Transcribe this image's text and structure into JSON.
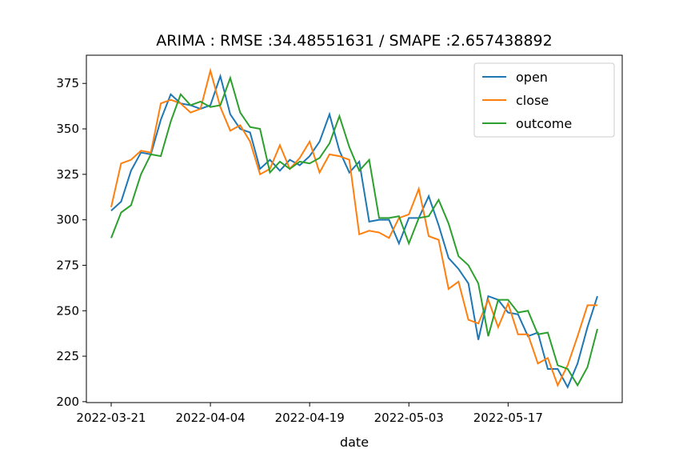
{
  "chart_data": {
    "type": "line",
    "title": "ARIMA : RMSE :34.48551631 / SMAPE :2.657438892",
    "x_label": "date",
    "categories": [
      "2022-03-21",
      null,
      null,
      null,
      null,
      null,
      null,
      null,
      null,
      null,
      "2022-04-04",
      null,
      null,
      null,
      null,
      null,
      null,
      null,
      null,
      null,
      "2022-04-19",
      null,
      null,
      null,
      null,
      null,
      null,
      null,
      null,
      null,
      "2022-05-03",
      null,
      null,
      null,
      null,
      null,
      null,
      null,
      null,
      null,
      "2022-05-17",
      null,
      null,
      null,
      null,
      null,
      null,
      null,
      null,
      null
    ],
    "series": [
      {
        "name": "open",
        "color": "#1f77b4",
        "values": [
          305,
          310,
          327,
          337,
          336,
          355,
          369,
          364,
          363,
          361,
          363,
          379,
          358,
          350,
          348,
          328,
          333,
          327,
          333,
          330,
          335,
          343,
          358,
          338,
          326,
          332,
          299,
          300,
          300,
          287,
          301,
          301,
          313,
          297,
          279,
          273,
          265,
          234,
          258,
          256,
          249,
          248,
          236,
          238,
          218,
          218,
          208,
          221,
          241,
          258
        ]
      },
      {
        "name": "close",
        "color": "#ff7f0e",
        "values": [
          307,
          331,
          333,
          338,
          337,
          364,
          366,
          364,
          359,
          361,
          382,
          362,
          349,
          352,
          343,
          325,
          328,
          341,
          328,
          334,
          343,
          326,
          336,
          335,
          333,
          292,
          294,
          293,
          290,
          301,
          303,
          317,
          291,
          289,
          262,
          266,
          245,
          243,
          256,
          241,
          254,
          237,
          237,
          221,
          224,
          209,
          220,
          236,
          253,
          253
        ]
      },
      {
        "name": "outcome",
        "color": "#2ca02c",
        "values": [
          290,
          304,
          308,
          325,
          336,
          335,
          354,
          369,
          363,
          365,
          362,
          363,
          378,
          359,
          351,
          350,
          326,
          332,
          328,
          332,
          331,
          334,
          342,
          357,
          340,
          327,
          333,
          301,
          301,
          302,
          287,
          301,
          302,
          311,
          298,
          280,
          275,
          265,
          236,
          256,
          256,
          249,
          250,
          237,
          238,
          220,
          218,
          209,
          219,
          240
        ]
      }
    ],
    "xlim": [
      -2.5,
      51.5
    ],
    "ylim": [
      199.5,
      390.5
    ],
    "yticks": [
      200,
      225,
      250,
      275,
      300,
      325,
      350,
      375
    ],
    "legend": "upper right"
  }
}
